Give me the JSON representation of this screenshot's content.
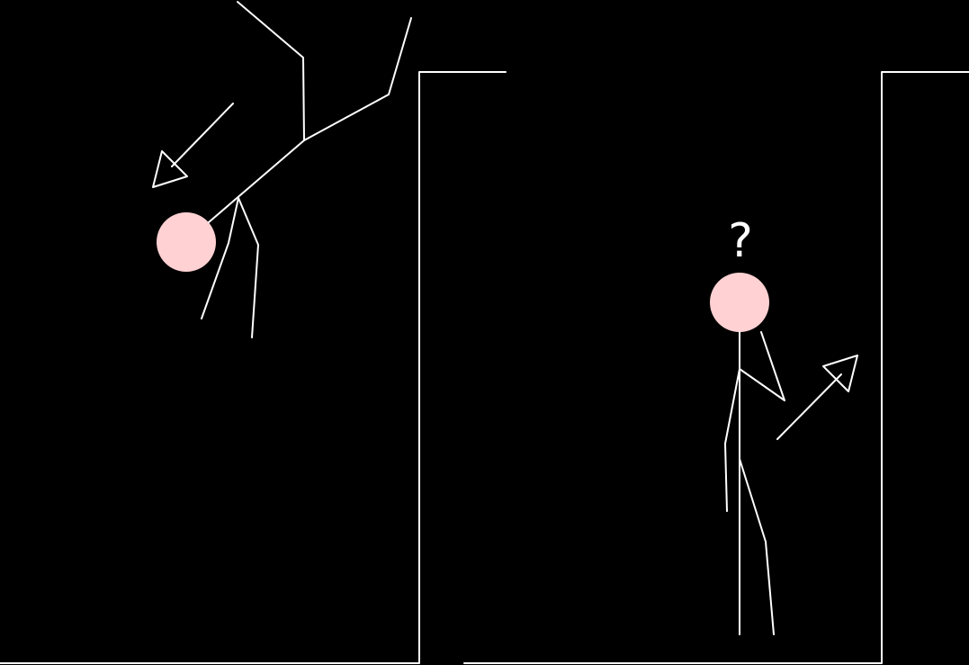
{
  "colors": {
    "background": "#000000",
    "line": "#ffffff",
    "head": "#ffd1d3"
  },
  "labels": {
    "question_mark": "?"
  }
}
